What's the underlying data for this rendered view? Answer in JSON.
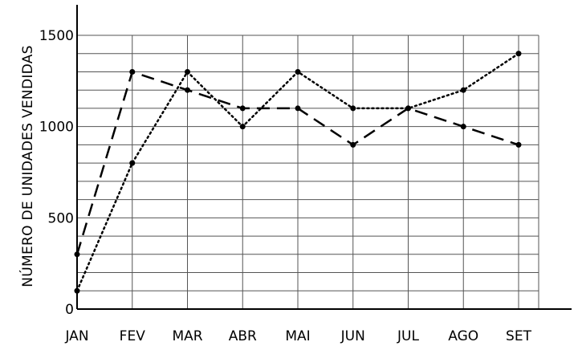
{
  "chart_data": {
    "type": "line",
    "title": "",
    "xlabel": "",
    "ylabel": "NÚMERO DE UNIDADES VENDIDAS",
    "categories": [
      "JAN",
      "FEV",
      "MAR",
      "ABR",
      "MAI",
      "JUN",
      "JUL",
      "AGO",
      "SET"
    ],
    "ylim": [
      0,
      1500
    ],
    "yticks": [
      0,
      500,
      1000,
      1500
    ],
    "grid": true,
    "series": [
      {
        "style": "dashed",
        "values": [
          300,
          1300,
          1200,
          1100,
          1100,
          900,
          1100,
          1000,
          900
        ]
      },
      {
        "style": "dotted",
        "values": [
          100,
          800,
          1300,
          1000,
          1300,
          1100,
          1100,
          1200,
          1400
        ]
      }
    ]
  }
}
